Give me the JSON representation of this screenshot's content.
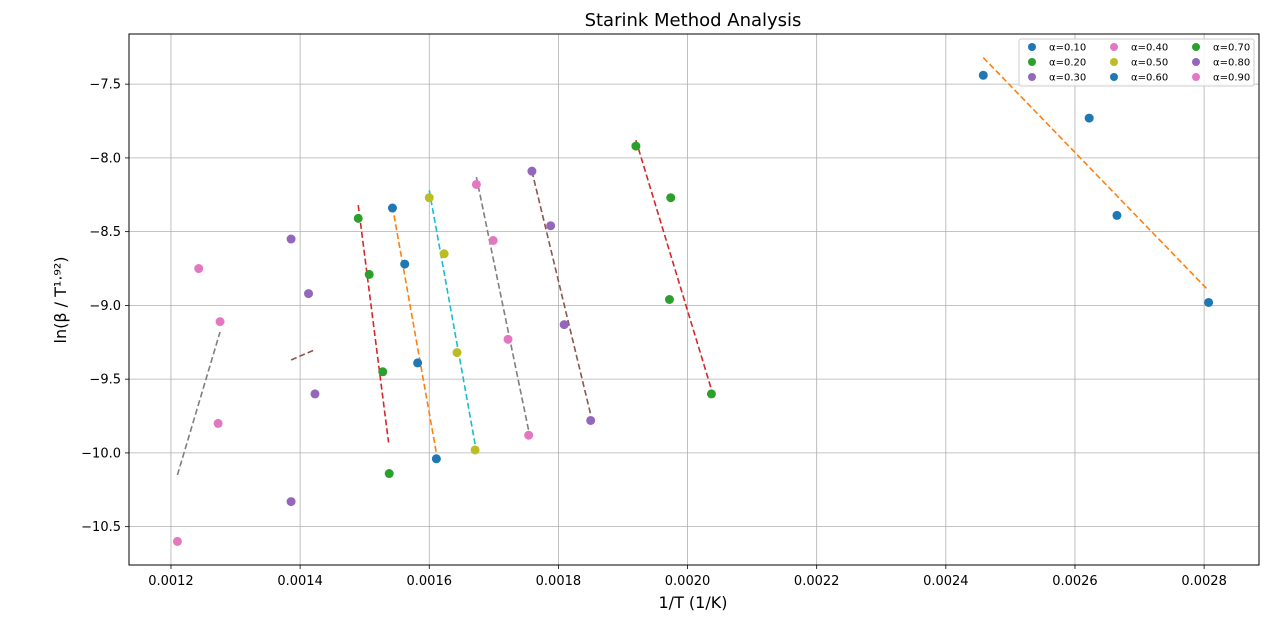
{
  "chart_data": {
    "type": "scatter",
    "title": "Starink Method Analysis",
    "xlabel": "1/T (1/K)",
    "ylabel": "ln(β / T¹·⁹²)",
    "xlim": [
      0.001135,
      0.002885
    ],
    "ylim": [
      -10.76,
      -7.16
    ],
    "x_ticks": [
      0.0012,
      0.0014,
      0.0016,
      0.0018,
      0.002,
      0.0022,
      0.0024,
      0.0026,
      0.0028
    ],
    "x_tick_labels": [
      "0.0012",
      "0.0014",
      "0.0016",
      "0.0018",
      "0.0020",
      "0.0022",
      "0.0024",
      "0.0026",
      "0.0028"
    ],
    "y_ticks": [
      -10.5,
      -10.0,
      -9.5,
      -9.0,
      -8.5,
      -8.0,
      -7.5
    ],
    "y_tick_labels": [
      "−10.5",
      "−10.0",
      "−9.5",
      "−9.0",
      "−8.5",
      "−8.0",
      "−7.5"
    ],
    "grid": true,
    "legend": {
      "placement": "top-right",
      "columns": 3
    },
    "series": [
      {
        "name": "α=0.10",
        "color": "#1f77b4",
        "points": [
          [
            0.002458,
            -7.44
          ],
          [
            0.002622,
            -7.73
          ],
          [
            0.002665,
            -8.39
          ],
          [
            0.002807,
            -8.98
          ]
        ],
        "fit": {
          "color": "#ff7f0e",
          "x": [
            0.002458,
            0.002807
          ],
          "y": [
            -7.32,
            -8.9
          ]
        }
      },
      {
        "name": "α=0.20",
        "color": "#2ca02c",
        "points": [
          [
            0.00192,
            -7.92
          ],
          [
            0.001974,
            -8.27
          ],
          [
            0.001972,
            -8.96
          ],
          [
            0.002037,
            -9.6
          ]
        ],
        "fit": {
          "color": "#d62728",
          "x": [
            0.00192,
            0.002037
          ],
          "y": [
            -7.88,
            -9.57
          ]
        }
      },
      {
        "name": "α=0.30",
        "color": "#9467bd",
        "points": [
          [
            0.001759,
            -8.09
          ],
          [
            0.001788,
            -8.46
          ],
          [
            0.001809,
            -9.13
          ],
          [
            0.00185,
            -9.78
          ]
        ],
        "fit": {
          "color": "#8c564b",
          "x": [
            0.001759,
            0.00185
          ],
          "y": [
            -8.09,
            -9.74
          ]
        }
      },
      {
        "name": "α=0.40",
        "color": "#e377c2",
        "points": [
          [
            0.001673,
            -8.18
          ],
          [
            0.001699,
            -8.56
          ],
          [
            0.001722,
            -9.23
          ],
          [
            0.001754,
            -9.88
          ]
        ],
        "fit": {
          "color": "#7f7f7f",
          "x": [
            0.001673,
            0.001754
          ],
          "y": [
            -8.13,
            -9.85
          ]
        }
      },
      {
        "name": "α=0.50",
        "color": "#bcbd22",
        "points": [
          [
            0.0016,
            -8.27
          ],
          [
            0.001623,
            -8.65
          ],
          [
            0.001643,
            -9.32
          ],
          [
            0.001671,
            -9.98
          ]
        ],
        "fit": {
          "color": "#17becf",
          "x": [
            0.0016,
            0.001671
          ],
          "y": [
            -8.22,
            -9.94
          ]
        }
      },
      {
        "name": "α=0.60",
        "color": "#1f77b4",
        "points": [
          [
            0.001543,
            -8.34
          ],
          [
            0.001562,
            -8.72
          ],
          [
            0.001582,
            -9.39
          ],
          [
            0.001611,
            -10.04
          ]
        ],
        "fit": {
          "color": "#ff7f0e",
          "x": [
            0.001543,
            0.001611
          ],
          "y": [
            -8.33,
            -10.0
          ]
        }
      },
      {
        "name": "α=0.70",
        "color": "#2ca02c",
        "points": [
          [
            0.00149,
            -8.41
          ],
          [
            0.001507,
            -8.79
          ],
          [
            0.001528,
            -9.45
          ],
          [
            0.001538,
            -10.14
          ]
        ],
        "fit": {
          "color": "#d62728",
          "x": [
            0.00149,
            0.001537
          ],
          "y": [
            -8.32,
            -9.93
          ]
        }
      },
      {
        "name": "α=0.80",
        "color": "#9467bd",
        "points": [
          [
            0.001386,
            -8.55
          ],
          [
            0.001413,
            -8.92
          ],
          [
            0.001423,
            -9.6
          ],
          [
            0.001386,
            -10.33
          ]
        ],
        "fit": {
          "color": "#8c564b",
          "x": [
            0.001386,
            0.001423
          ],
          "y": [
            -9.37,
            -9.3
          ]
        }
      },
      {
        "name": "α=0.90",
        "color": "#e377c2",
        "points": [
          [
            0.001243,
            -8.75
          ],
          [
            0.001276,
            -9.11
          ],
          [
            0.001273,
            -9.8
          ],
          [
            0.00121,
            -10.6
          ]
        ],
        "fit": {
          "color": "#7f7f7f",
          "x": [
            0.00121,
            0.001276
          ],
          "y": [
            -10.15,
            -9.18
          ]
        }
      }
    ]
  }
}
